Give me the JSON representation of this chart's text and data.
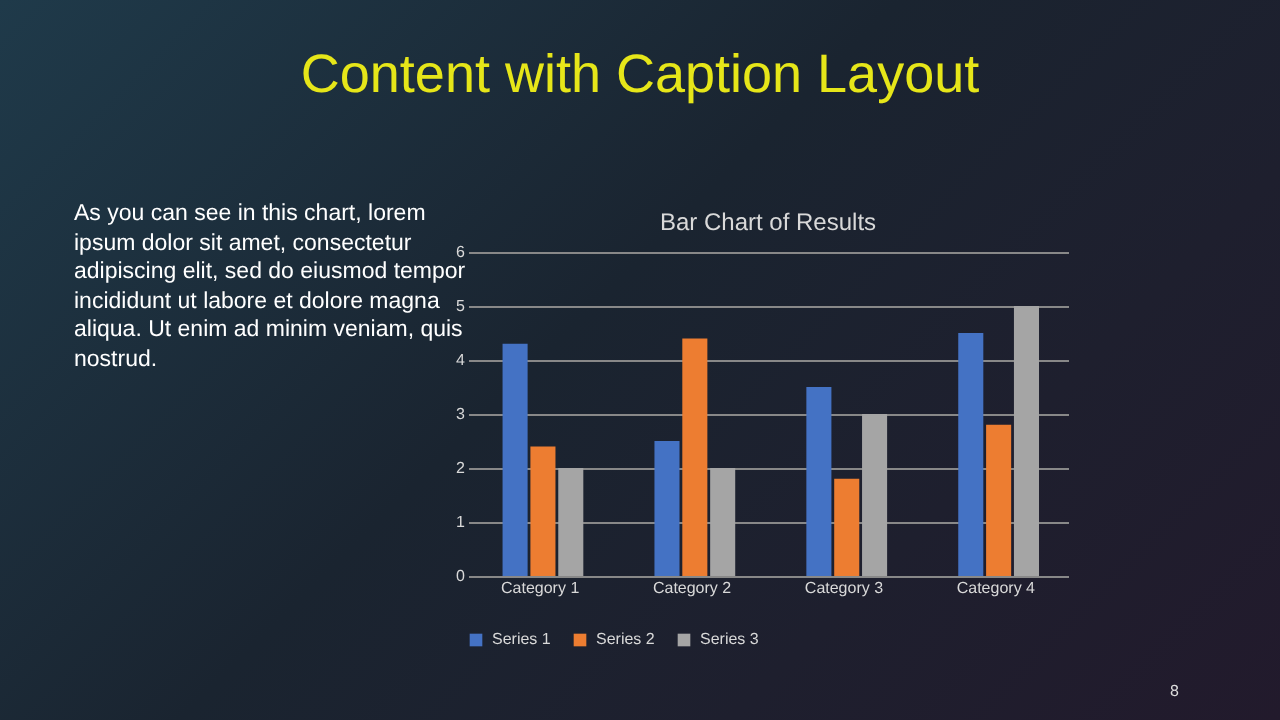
{
  "chart_data": {
    "type": "bar",
    "title": "Content with Caption Layout",
    "subtitle": "Bar Chart of Results",
    "categories": [
      "Category 1",
      "Category 2",
      "Category 3",
      "Category 4"
    ],
    "series": [
      {
        "name": "Series 1",
        "color": "#4472c4",
        "values": [
          4.3,
          2.5,
          3.5,
          4.5
        ]
      },
      {
        "name": "Series 2",
        "color": "#ed7d31",
        "values": [
          2.4,
          4.4,
          1.8,
          2.8
        ]
      },
      {
        "name": "Series 3",
        "color": "#a5a5a5",
        "values": [
          2,
          2,
          3,
          5
        ]
      }
    ],
    "ylim": [
      0,
      6
    ],
    "yticks": [
      0,
      1,
      2,
      3,
      4,
      5,
      6
    ],
    "grid": "y",
    "legend": "bottom",
    "annotations": [
      "As you can see in this chart, lorem ipsum dolor sit amet, consectetur adipiscing elit, sed do eiusmod tempor incididunt ut labore et dolore magna aliqua. Ut enim ad minim veniam, quis nostrud.",
      "8"
    ]
  }
}
